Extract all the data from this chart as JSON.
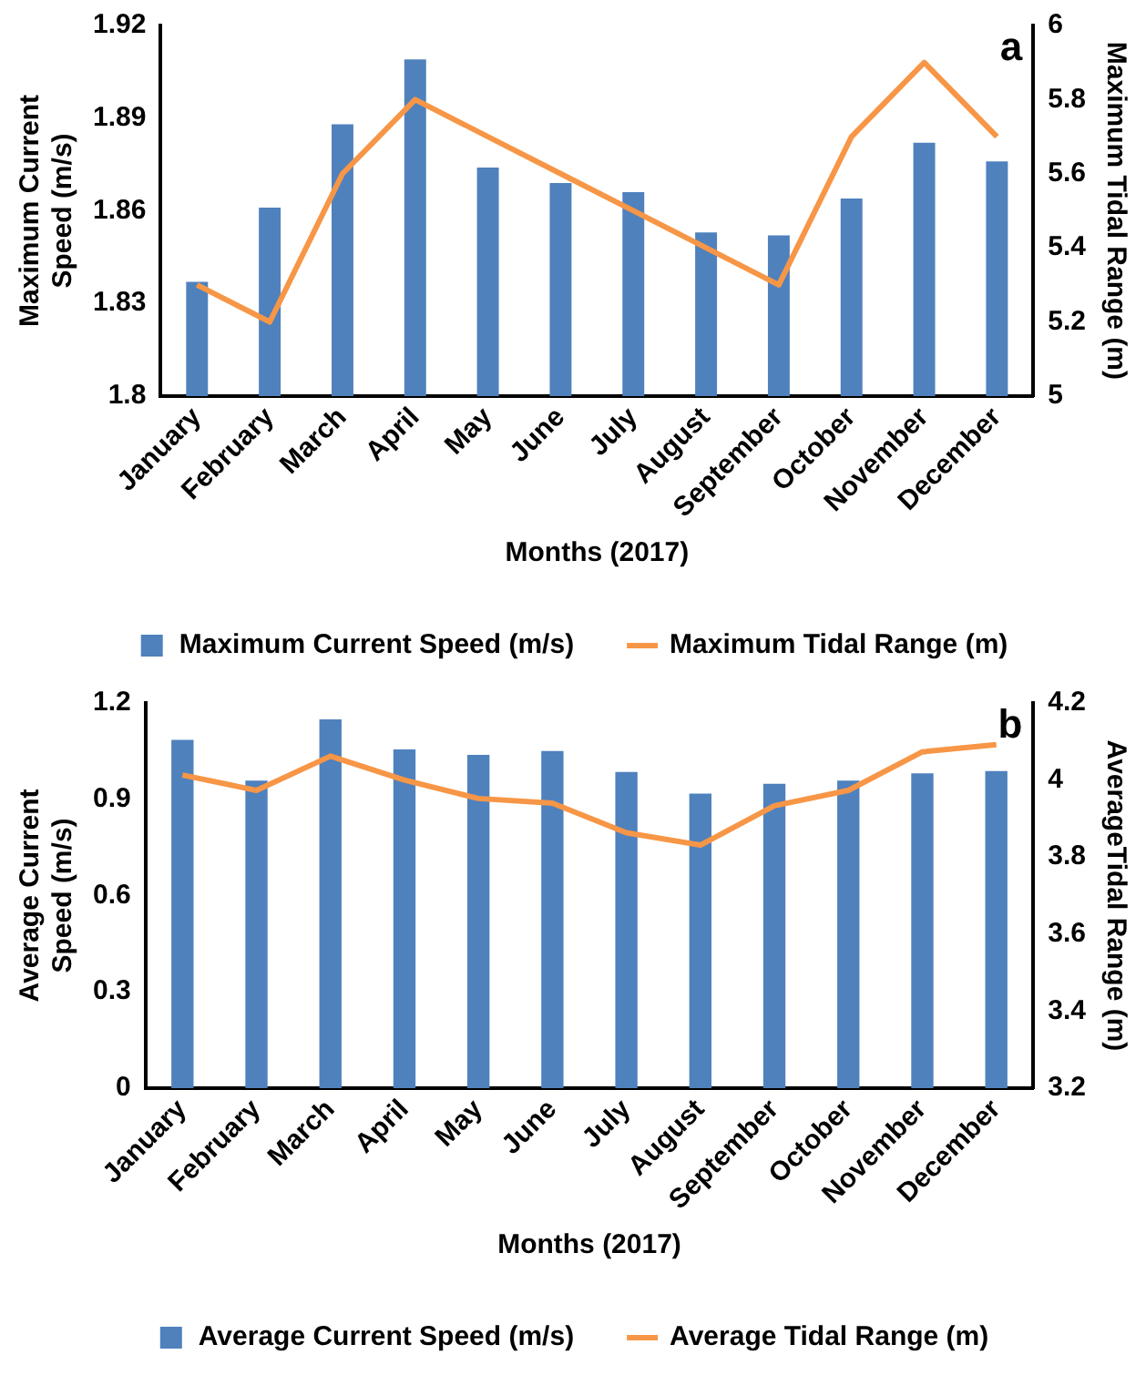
{
  "chart_data": [
    {
      "type": "bar",
      "categories": [
        "January",
        "February",
        "March",
        "April",
        "May",
        "June",
        "July",
        "August",
        "September",
        "October",
        "November",
        "December"
      ],
      "xlabel": "Months (2017)",
      "ylabel": "Maximum Current Speed (m/s)",
      "y2label": "Maximum Tidal Range (m)",
      "annotations": [
        "a"
      ],
      "series": [
        {
          "name": "Maximum Current Speed (m/s)",
          "color": "#4f81bd",
          "values": [
            1.837,
            1.861,
            1.888,
            1.909,
            1.874,
            1.869,
            1.866,
            1.853,
            1.852,
            1.864,
            1.882,
            1.876
          ]
        },
        {
          "name": "Maximum Tidal Range (m)",
          "type": "line",
          "axis": "y2",
          "color": "#f79646",
          "values": [
            5.3,
            5.2,
            5.6,
            5.8,
            5.7,
            5.6,
            5.5,
            5.4,
            5.3,
            5.7,
            5.9,
            5.7
          ]
        }
      ],
      "ylim": [
        1.8,
        1.92
      ],
      "yticks": [
        {
          "value": 1.8,
          "label": "1.8"
        },
        1.83,
        1.86,
        1.89,
        1.92
      ],
      "y2lim": [
        5,
        6
      ],
      "y2ticks": [
        5,
        5.2,
        5.4,
        5.6,
        5.8,
        6
      ],
      "grid": false,
      "legend": "bottom",
      "marker": "none"
    },
    {
      "type": "bar",
      "categories": [
        "January",
        "February",
        "March",
        "April",
        "May",
        "June",
        "July",
        "August",
        "September",
        "October",
        "November",
        "December"
      ],
      "xlabel": "Months (2017)",
      "ylabel": "Average Current Speed (m/s)",
      "y2label": "AverageTidal Range (m)",
      "annotations": [
        "b"
      ],
      "series": [
        {
          "name": "Average Current Speed (m/s)",
          "color": "#4f81bd",
          "values": [
            1.085,
            0.958,
            1.149,
            1.055,
            1.038,
            1.05,
            0.985,
            0.918,
            0.948,
            0.958,
            0.981,
            0.988
          ]
        },
        {
          "name": "Average Tidal Range (m)",
          "type": "line",
          "axis": "y2",
          "color": "#f79646",
          "values": [
            4.013,
            3.973,
            4.062,
            4.0,
            3.952,
            3.94,
            3.863,
            3.831,
            3.933,
            3.973,
            4.073,
            4.092
          ]
        }
      ],
      "ylim": [
        0,
        1.2
      ],
      "yticks": [
        0,
        0.3,
        0.6,
        0.9,
        1.2
      ],
      "y2lim": [
        3.2,
        4.2
      ],
      "y2ticks": [
        3.2,
        3.4,
        3.6,
        3.8,
        4,
        4.2
      ],
      "grid": false,
      "legend": "bottom",
      "marker": "none"
    }
  ]
}
